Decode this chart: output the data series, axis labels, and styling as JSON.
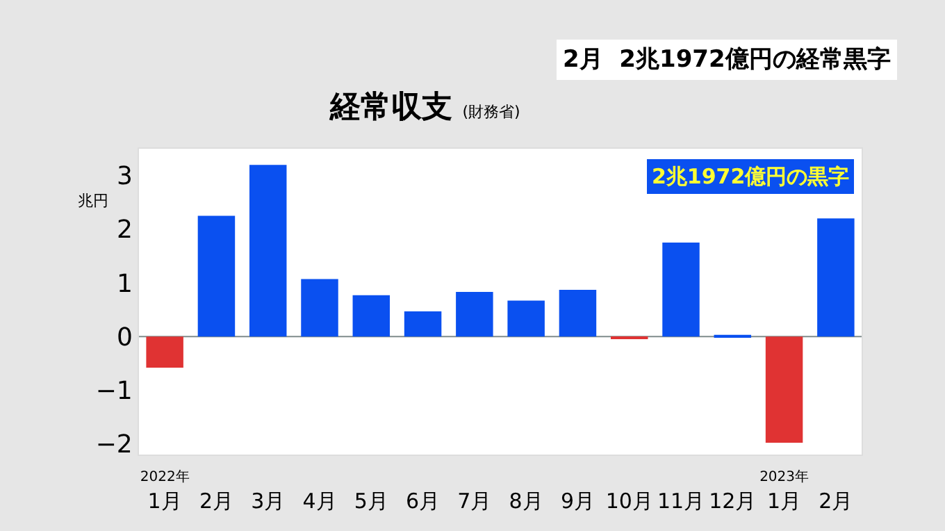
{
  "chart_data": {
    "type": "bar",
    "title": "経常収支",
    "subtitle": "(財務省)",
    "ylabel": "兆円",
    "annotations": [
      "2月  2兆1972億円の経常黒字",
      "2兆1972億円の黒字"
    ],
    "categories": [
      "2022年\n1月",
      "2月",
      "3月",
      "4月",
      "5月",
      "6月",
      "7月",
      "8月",
      "9月",
      "10月",
      "11月",
      "12月",
      "2023年\n1月",
      "2月"
    ],
    "values": [
      -0.58,
      2.25,
      3.2,
      1.07,
      0.77,
      0.47,
      0.83,
      0.67,
      0.87,
      -0.05,
      1.75,
      0.03,
      -1.98,
      2.2
    ],
    "colors": [
      "#e03333",
      "#0a50f0",
      "#0a50f0",
      "#0a50f0",
      "#0a50f0",
      "#0a50f0",
      "#0a50f0",
      "#0a50f0",
      "#0a50f0",
      "#e03333",
      "#0a50f0",
      "#0a50f0",
      "#e03333",
      "#0a50f0"
    ],
    "ylim": [
      -2.2,
      3.5
    ],
    "yticks": [
      -2,
      -1,
      0,
      1,
      2,
      3
    ],
    "legend": false
  }
}
